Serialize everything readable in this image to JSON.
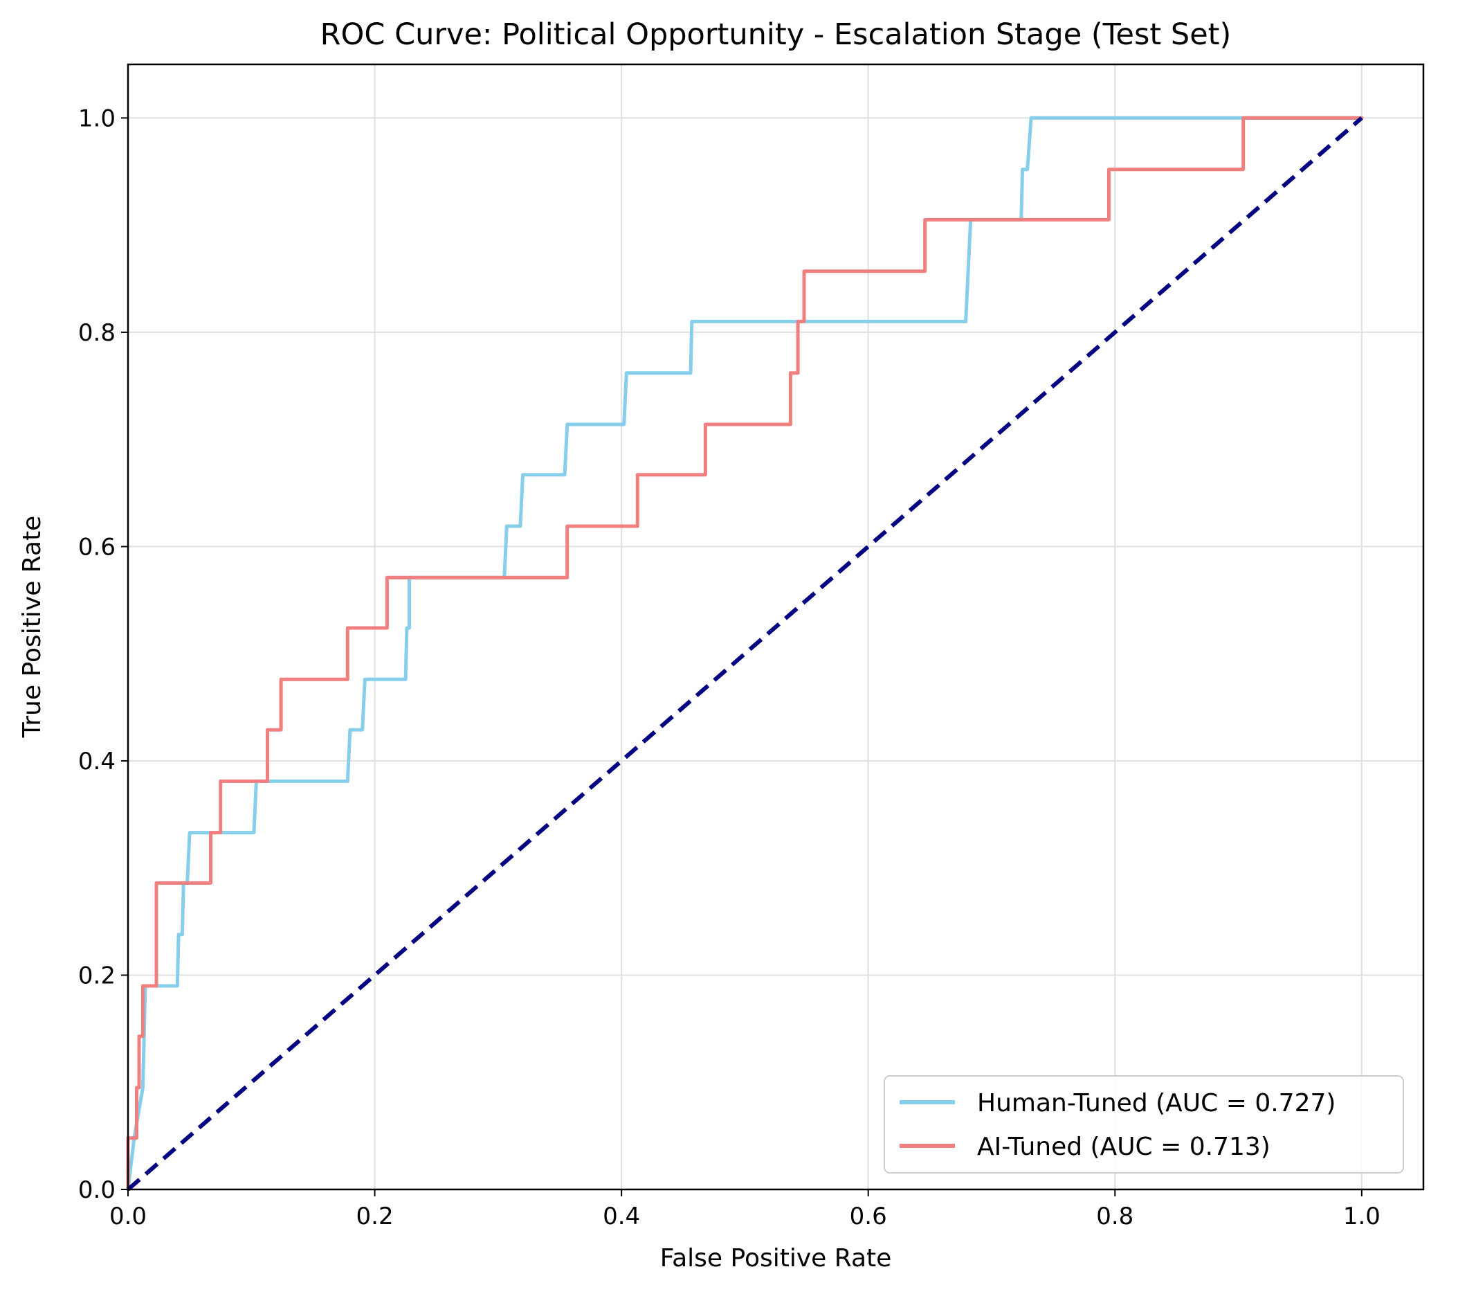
{
  "chart_data": {
    "type": "line",
    "title": "ROC Curve: Political Opportunity - Escalation Stage (Test Set)",
    "xlabel": "False Positive Rate",
    "ylabel": "True Positive Rate",
    "xlim": [
      0.0,
      1.05
    ],
    "ylim": [
      0.0,
      1.05
    ],
    "grid": true,
    "legend_position": "lower-right",
    "x_ticks": [
      "0.0",
      "0.2",
      "0.4",
      "0.6",
      "0.8",
      "1.0"
    ],
    "y_ticks": [
      "0.0",
      "0.2",
      "0.4",
      "0.6",
      "0.8",
      "1.0"
    ],
    "series": [
      {
        "name": "Human-Tuned (AUC = 0.727)",
        "color": "#87ceeb",
        "x": [
          0.0,
          0.0,
          0.005,
          0.005,
          0.012,
          0.012,
          0.014,
          0.014,
          0.04,
          0.041,
          0.044,
          0.045,
          0.048,
          0.05,
          0.102,
          0.104,
          0.106,
          0.178,
          0.18,
          0.182,
          0.19,
          0.192,
          0.225,
          0.226,
          0.228,
          0.228,
          0.305,
          0.307,
          0.318,
          0.32,
          0.354,
          0.356,
          0.402,
          0.404,
          0.456,
          0.457,
          0.679,
          0.681,
          0.683,
          0.724,
          0.725,
          0.728,
          0.729,
          0.732,
          0.735,
          1.0
        ],
        "y": [
          0.0,
          0.0,
          0.048,
          0.048,
          0.095,
          0.095,
          0.19,
          0.19,
          0.19,
          0.238,
          0.238,
          0.286,
          0.286,
          0.333,
          0.333,
          0.381,
          0.381,
          0.381,
          0.429,
          0.429,
          0.429,
          0.476,
          0.476,
          0.524,
          0.524,
          0.571,
          0.571,
          0.619,
          0.619,
          0.667,
          0.667,
          0.714,
          0.714,
          0.762,
          0.762,
          0.81,
          0.81,
          0.857,
          0.905,
          0.905,
          0.952,
          0.952,
          0.952,
          1.0,
          1.0,
          1.0
        ]
      },
      {
        "name": "AI-Tuned (AUC = 0.713)",
        "color": "#f08080",
        "x": [
          0.0,
          0.0,
          0.007,
          0.007,
          0.009,
          0.009,
          0.012,
          0.012,
          0.023,
          0.023,
          0.067,
          0.067,
          0.075,
          0.075,
          0.113,
          0.113,
          0.124,
          0.124,
          0.178,
          0.178,
          0.21,
          0.21,
          0.356,
          0.356,
          0.413,
          0.413,
          0.468,
          0.468,
          0.537,
          0.537,
          0.543,
          0.543,
          0.548,
          0.548,
          0.646,
          0.646,
          0.795,
          0.795,
          0.904,
          0.904,
          1.0
        ],
        "y": [
          0.0,
          0.048,
          0.048,
          0.095,
          0.095,
          0.143,
          0.143,
          0.19,
          0.19,
          0.286,
          0.286,
          0.333,
          0.333,
          0.381,
          0.381,
          0.429,
          0.429,
          0.476,
          0.476,
          0.524,
          0.524,
          0.571,
          0.571,
          0.619,
          0.619,
          0.667,
          0.667,
          0.714,
          0.714,
          0.762,
          0.762,
          0.81,
          0.81,
          0.857,
          0.857,
          0.905,
          0.905,
          0.952,
          0.952,
          1.0,
          1.0
        ]
      }
    ],
    "reference_line": {
      "x": [
        0.0,
        1.0
      ],
      "y": [
        0.0,
        1.0
      ],
      "color": "#000080",
      "style": "dashed"
    }
  }
}
